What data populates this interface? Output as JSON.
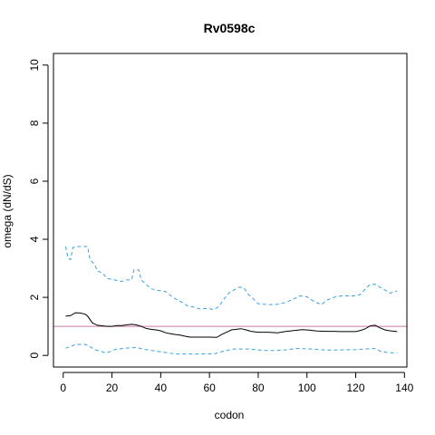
{
  "chart_data": {
    "type": "line",
    "title": "Rv0598c",
    "xlabel": "codon",
    "ylabel": "omega (dN/dS)",
    "xlim": [
      -4,
      141
    ],
    "ylim": [
      -0.4,
      10.4
    ],
    "x_ticks": [
      0,
      20,
      40,
      60,
      80,
      100,
      120,
      140
    ],
    "y_ticks": [
      0,
      2,
      4,
      6,
      8,
      10
    ],
    "grid": false,
    "legend": "none",
    "reference_line": {
      "y": 1,
      "color": "#cc79a7"
    },
    "series": [
      {
        "role": "estimate",
        "color": "#000000",
        "style": "solid",
        "points": [
          [
            1,
            1.35
          ],
          [
            3,
            1.37
          ],
          [
            5,
            1.47
          ],
          [
            7,
            1.46
          ],
          [
            9,
            1.42
          ],
          [
            10,
            1.35
          ],
          [
            12,
            1.12
          ],
          [
            14,
            1.04
          ],
          [
            16,
            1.02
          ],
          [
            18,
            1.0
          ],
          [
            20,
            1.0
          ],
          [
            22,
            1.03
          ],
          [
            24,
            1.03
          ],
          [
            26,
            1.05
          ],
          [
            28,
            1.07
          ],
          [
            30,
            1.05
          ],
          [
            32,
            1.0
          ],
          [
            34,
            0.93
          ],
          [
            36,
            0.9
          ],
          [
            38,
            0.88
          ],
          [
            40,
            0.85
          ],
          [
            42,
            0.78
          ],
          [
            44,
            0.75
          ],
          [
            46,
            0.72
          ],
          [
            48,
            0.7
          ],
          [
            50,
            0.66
          ],
          [
            52,
            0.63
          ],
          [
            56,
            0.63
          ],
          [
            60,
            0.63
          ],
          [
            63,
            0.62
          ],
          [
            65,
            0.72
          ],
          [
            67,
            0.8
          ],
          [
            69,
            0.88
          ],
          [
            71,
            0.9
          ],
          [
            73,
            0.92
          ],
          [
            75,
            0.88
          ],
          [
            77,
            0.83
          ],
          [
            80,
            0.8
          ],
          [
            84,
            0.8
          ],
          [
            88,
            0.78
          ],
          [
            91,
            0.82
          ],
          [
            95,
            0.86
          ],
          [
            98,
            0.89
          ],
          [
            101,
            0.87
          ],
          [
            104,
            0.84
          ],
          [
            108,
            0.83
          ],
          [
            111,
            0.83
          ],
          [
            114,
            0.82
          ],
          [
            117,
            0.82
          ],
          [
            120,
            0.82
          ],
          [
            122,
            0.86
          ],
          [
            124,
            0.92
          ],
          [
            126,
            1.02
          ],
          [
            128,
            1.04
          ],
          [
            130,
            0.95
          ],
          [
            132,
            0.88
          ],
          [
            134,
            0.85
          ],
          [
            137,
            0.82
          ]
        ]
      },
      {
        "role": "upper bound",
        "color": "#3ba0e0",
        "style": "dashed",
        "points": [
          [
            1,
            3.75
          ],
          [
            2,
            3.35
          ],
          [
            3,
            3.3
          ],
          [
            4,
            3.72
          ],
          [
            6,
            3.75
          ],
          [
            10,
            3.75
          ],
          [
            11,
            3.3
          ],
          [
            13,
            3.12
          ],
          [
            14,
            2.9
          ],
          [
            16,
            2.85
          ],
          [
            18,
            2.65
          ],
          [
            21,
            2.6
          ],
          [
            24,
            2.55
          ],
          [
            26,
            2.6
          ],
          [
            28,
            2.6
          ],
          [
            29,
            2.95
          ],
          [
            31,
            2.95
          ],
          [
            32,
            2.6
          ],
          [
            34,
            2.45
          ],
          [
            36,
            2.3
          ],
          [
            38,
            2.25
          ],
          [
            42,
            2.2
          ],
          [
            45,
            2.0
          ],
          [
            47,
            1.9
          ],
          [
            49,
            1.82
          ],
          [
            51,
            1.7
          ],
          [
            53,
            1.68
          ],
          [
            56,
            1.6
          ],
          [
            59,
            1.62
          ],
          [
            62,
            1.58
          ],
          [
            64,
            1.7
          ],
          [
            66,
            1.95
          ],
          [
            68,
            2.15
          ],
          [
            70,
            2.25
          ],
          [
            72,
            2.35
          ],
          [
            74,
            2.33
          ],
          [
            76,
            2.1
          ],
          [
            78,
            1.95
          ],
          [
            80,
            1.78
          ],
          [
            84,
            1.75
          ],
          [
            88,
            1.76
          ],
          [
            91,
            1.82
          ],
          [
            94,
            1.92
          ],
          [
            97,
            2.05
          ],
          [
            100,
            2.02
          ],
          [
            103,
            1.85
          ],
          [
            106,
            1.75
          ],
          [
            108,
            1.9
          ],
          [
            111,
            2.0
          ],
          [
            114,
            2.05
          ],
          [
            119,
            2.05
          ],
          [
            122,
            2.1
          ],
          [
            124,
            2.3
          ],
          [
            126,
            2.45
          ],
          [
            128,
            2.45
          ],
          [
            130,
            2.35
          ],
          [
            132,
            2.25
          ],
          [
            134,
            2.15
          ],
          [
            137,
            2.22
          ]
        ]
      },
      {
        "role": "lower bound",
        "color": "#3ba0e0",
        "style": "dashed",
        "points": [
          [
            1,
            0.25
          ],
          [
            3,
            0.3
          ],
          [
            5,
            0.38
          ],
          [
            9,
            0.38
          ],
          [
            11,
            0.3
          ],
          [
            13,
            0.2
          ],
          [
            15,
            0.15
          ],
          [
            17,
            0.1
          ],
          [
            19,
            0.12
          ],
          [
            21,
            0.2
          ],
          [
            25,
            0.25
          ],
          [
            30,
            0.27
          ],
          [
            34,
            0.2
          ],
          [
            38,
            0.15
          ],
          [
            42,
            0.1
          ],
          [
            46,
            0.05
          ],
          [
            50,
            0.05
          ],
          [
            56,
            0.05
          ],
          [
            62,
            0.06
          ],
          [
            66,
            0.15
          ],
          [
            70,
            0.22
          ],
          [
            76,
            0.22
          ],
          [
            82,
            0.17
          ],
          [
            88,
            0.17
          ],
          [
            92,
            0.2
          ],
          [
            96,
            0.24
          ],
          [
            102,
            0.22
          ],
          [
            108,
            0.18
          ],
          [
            114,
            0.19
          ],
          [
            120,
            0.2
          ],
          [
            124,
            0.22
          ],
          [
            128,
            0.24
          ],
          [
            130,
            0.15
          ],
          [
            133,
            0.1
          ],
          [
            137,
            0.08
          ]
        ]
      }
    ]
  }
}
